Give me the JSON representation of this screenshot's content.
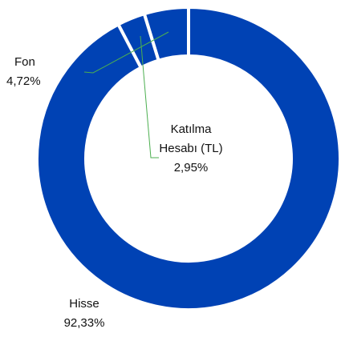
{
  "chart_data": {
    "type": "donut",
    "categories": [
      "Hisse",
      "Katılma Hesabı (TL)",
      "Fon"
    ],
    "values": [
      92.33,
      2.95,
      4.72
    ],
    "value_labels": [
      "92,33%",
      "2,95%",
      "4,72%"
    ],
    "color": "#0042b4"
  }
}
